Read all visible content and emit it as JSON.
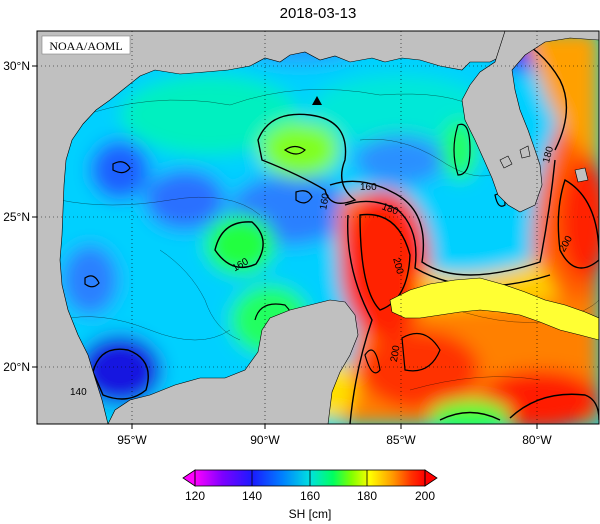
{
  "title": "2018-03-13",
  "credit": "NOAA/AOML",
  "lat_labels": [
    "30°N",
    "25°N",
    "20°N"
  ],
  "lon_labels": [
    "95°W",
    "90°W",
    "85°W",
    "80°W"
  ],
  "contour_labels": [
    "140",
    "160",
    "160",
    "160",
    "180",
    "180",
    "200",
    "200",
    "200"
  ],
  "colorbar": {
    "title": "SH [cm]",
    "ticks": [
      "120",
      "140",
      "160",
      "180",
      "200"
    ],
    "range": [
      120,
      200
    ],
    "colors": [
      "#ff00ff",
      "#7d00ff",
      "#1200ff",
      "#0064ff",
      "#00bfff",
      "#00ffbf",
      "#00ff40",
      "#9cff00",
      "#ffff00",
      "#ffa000",
      "#ff4000",
      "#ff0000"
    ]
  },
  "map": {
    "lat_range": [
      18,
      31
    ],
    "lon_range": [
      -98.5,
      -78
    ],
    "marker": "triangle"
  },
  "colors": {
    "land": "#c0c0c0",
    "cuba": "#ffff33",
    "frame": "#000000"
  }
}
